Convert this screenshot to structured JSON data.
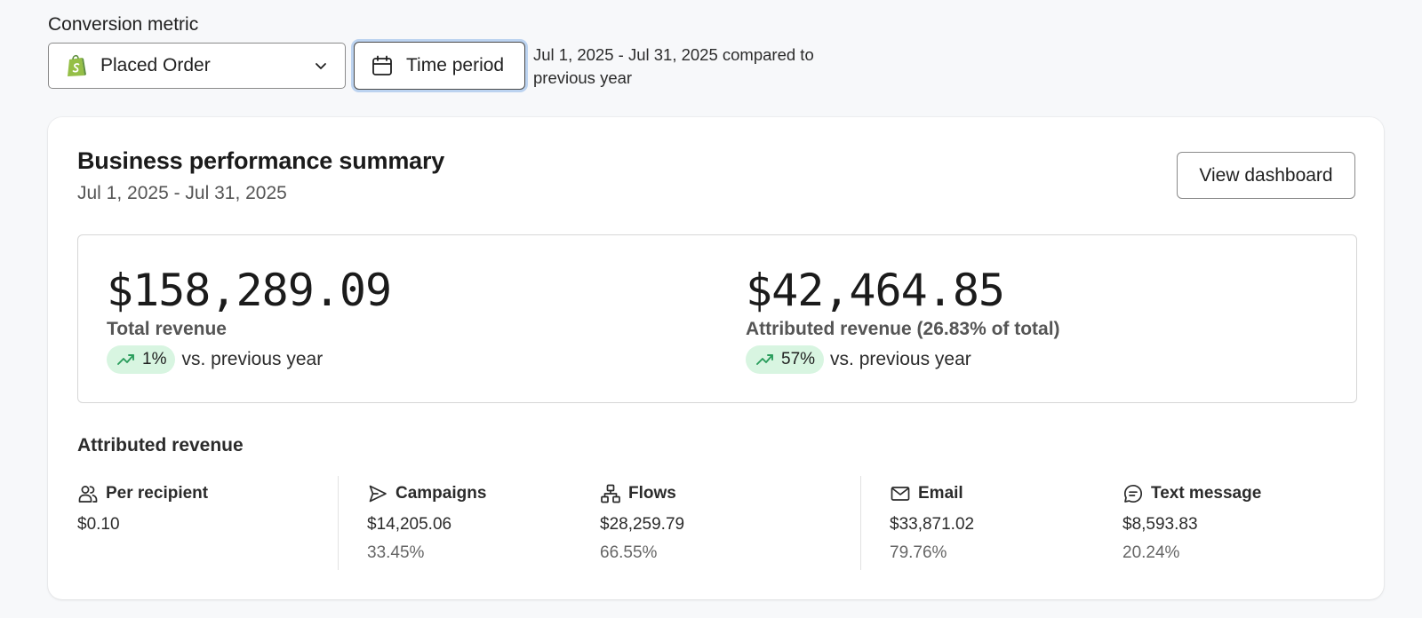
{
  "header": {
    "metric_label": "Conversion metric",
    "metric_value": "Placed Order",
    "time_button": "Time period",
    "period_text": "Jul 1, 2025 - Jul 31, 2025 compared to previous year"
  },
  "card": {
    "title": "Business performance summary",
    "subtitle": "Jul 1, 2025 - Jul 31, 2025",
    "view_button": "View dashboard",
    "total": {
      "amount": "$158,289.09",
      "label": "Total revenue",
      "change": "1%",
      "comparison": "vs. previous year"
    },
    "attributed": {
      "amount": "$42,464.85",
      "label": "Attributed revenue (26.83% of total)",
      "change": "57%",
      "comparison": "vs. previous year"
    },
    "attributed_heading": "Attributed revenue",
    "stats": [
      {
        "label": "Per recipient",
        "value": "$0.10",
        "percent": ""
      },
      {
        "label": "Campaigns",
        "value": "$14,205.06",
        "percent": "33.45%"
      },
      {
        "label": "Flows",
        "value": "$28,259.79",
        "percent": "66.55%"
      },
      {
        "label": "Email",
        "value": "$33,871.02",
        "percent": "79.76%"
      },
      {
        "label": "Text message",
        "value": "$8,593.83",
        "percent": "20.24%"
      }
    ]
  },
  "colors": {
    "background": "#f7f8fa",
    "badge_bg": "#d8f5e1",
    "trend_green": "#2a9d5c",
    "shopify_green": "#95bf47",
    "focus_ring": "#bcd3f0"
  },
  "icons": [
    "shopify-icon",
    "chevron-down-icon",
    "calendar-icon",
    "trend-up-icon",
    "users-icon",
    "send-icon",
    "flow-icon",
    "mail-icon",
    "message-icon"
  ]
}
